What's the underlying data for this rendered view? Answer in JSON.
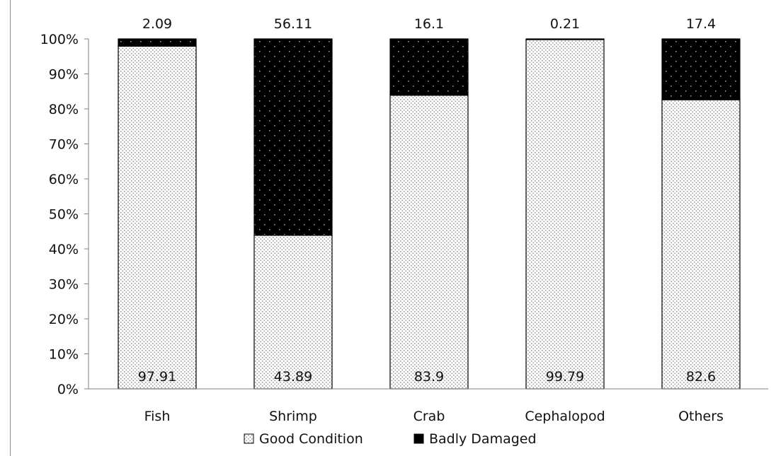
{
  "chart_data": {
    "type": "bar",
    "stacked": true,
    "percent_stacked": true,
    "categories": [
      "Fish",
      "Shrimp",
      "Crab",
      "Cephalopod",
      "Others"
    ],
    "series": [
      {
        "name": "Good Condition",
        "values": [
          97.91,
          43.89,
          83.9,
          99.79,
          82.6
        ],
        "value_labels": [
          "97.91",
          "43.89",
          "83.9",
          "99.79",
          "82.6"
        ],
        "pattern": "light-dotted",
        "color": "#ffffff"
      },
      {
        "name": "Badly Damaged",
        "values": [
          2.09,
          56.11,
          16.1,
          0.21,
          17.4
        ],
        "value_labels": [
          "2.09",
          "56.11",
          "16.1",
          "0.21",
          "17.4"
        ],
        "pattern": "dark-dotted",
        "color": "#000000"
      }
    ],
    "y_ticks": [
      "0%",
      "10%",
      "20%",
      "30%",
      "40%",
      "50%",
      "60%",
      "70%",
      "80%",
      "90%",
      "100%"
    ],
    "ylim": [
      0,
      100
    ],
    "title": "",
    "xlabel": "",
    "ylabel": "",
    "grid": false,
    "legend_position": "bottom"
  }
}
